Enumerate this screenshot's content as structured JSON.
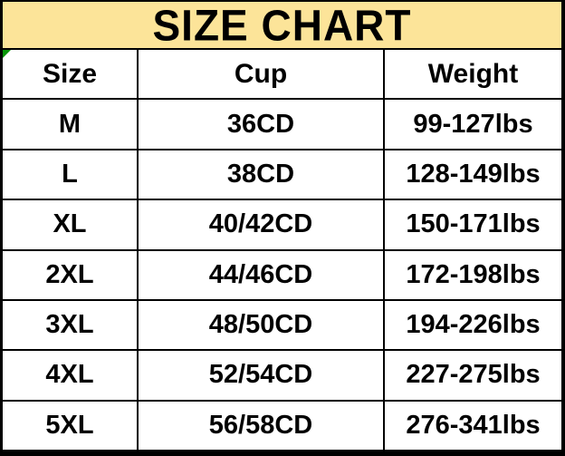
{
  "title": "SIZE CHART",
  "colors": {
    "banner_bg": "#FCE499",
    "border": "#000000",
    "text": "#000000",
    "cell_bg": "#FFFFFF",
    "marker_green": "#089408"
  },
  "chart_data": {
    "type": "table",
    "title": "SIZE CHART",
    "columns": [
      "Size",
      "Cup",
      "Weight"
    ],
    "rows": [
      [
        "M",
        "36CD",
        "99-127lbs"
      ],
      [
        "L",
        "38CD",
        "128-149lbs"
      ],
      [
        "XL",
        "40/42CD",
        "150-171lbs"
      ],
      [
        "2XL",
        "44/46CD",
        "172-198lbs"
      ],
      [
        "3XL",
        "48/50CD",
        "194-226lbs"
      ],
      [
        "4XL",
        "52/54CD",
        "227-275lbs"
      ],
      [
        "5XL",
        "56/58CD",
        "276-341lbs"
      ]
    ],
    "layout": {
      "header_banner": true,
      "grid": true,
      "column_count": 3,
      "row_count": 7
    }
  }
}
